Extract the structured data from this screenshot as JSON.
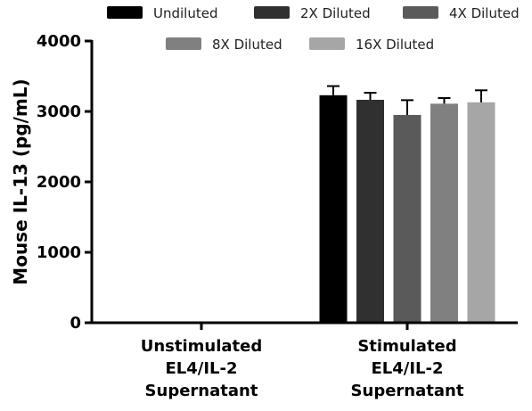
{
  "chart_data": {
    "type": "bar",
    "ylabel": "Mouse IL-13 (pg/mL)",
    "ylim": [
      0,
      4000
    ],
    "yticks": [
      0,
      1000,
      2000,
      3000,
      4000
    ],
    "categories": [
      [
        "Unstimulated",
        "EL4/IL-2",
        "Supernatant"
      ],
      [
        "Stimulated",
        "EL4/IL-2",
        "Supernatant"
      ]
    ],
    "series": [
      {
        "name": "Undiluted",
        "color": "#000000",
        "values": [
          0,
          3230
        ],
        "errors": [
          0,
          130
        ]
      },
      {
        "name": "2X Diluted",
        "color": "#303030",
        "values": [
          0,
          3165
        ],
        "errors": [
          0,
          100
        ]
      },
      {
        "name": "4X Diluted",
        "color": "#5a5a5a",
        "values": [
          0,
          2950
        ],
        "errors": [
          0,
          210
        ]
      },
      {
        "name": "8X Diluted",
        "color": "#808080",
        "values": [
          0,
          3110
        ],
        "errors": [
          0,
          80
        ]
      },
      {
        "name": "16X Diluted",
        "color": "#a6a6a6",
        "values": [
          0,
          3130
        ],
        "errors": [
          0,
          170
        ]
      }
    ],
    "legend_position": "top"
  }
}
